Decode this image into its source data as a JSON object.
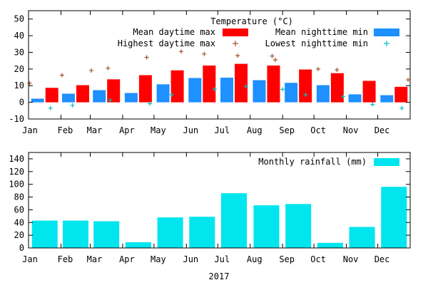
{
  "chart_data": [
    {
      "type": "bar",
      "title": "Temperature (°C)",
      "categories": [
        "Jan",
        "Feb",
        "Mar",
        "Apr",
        "May",
        "Jun",
        "Jul",
        "Aug",
        "Sep",
        "Oct",
        "Nov",
        "Dec"
      ],
      "ylim": [
        -10,
        55
      ],
      "yticks": [
        -10,
        0,
        10,
        20,
        30,
        40,
        50
      ],
      "grid": false,
      "legend_position": "top-right",
      "series": [
        {
          "name": "Mean nighttime min",
          "kind": "bar",
          "color": "#1e90ff",
          "values": [
            2.2,
            5.2,
            7.3,
            5.6,
            10.8,
            14.6,
            14.8,
            13.3,
            11.7,
            10.3,
            4.8,
            4.3
          ]
        },
        {
          "name": "Mean daytime max",
          "kind": "bar",
          "color": "#ff0000",
          "values": [
            8.7,
            10.3,
            13.8,
            16.3,
            19.2,
            22.1,
            23.1,
            22.1,
            19.7,
            17.5,
            12.9,
            9.3
          ]
        }
      ],
      "points": [
        {
          "name": "Highest daytime max",
          "marker": "+",
          "color": "#a0522d",
          "data": [
            [
              "2017-01-02",
              11.5
            ],
            [
              "2017-02-02",
              16.3
            ],
            [
              "2017-03-02",
              19.1
            ],
            [
              "2017-03-18",
              20.5
            ],
            [
              "2017-04-24",
              27.0
            ],
            [
              "2017-05-27",
              30.5
            ],
            [
              "2017-06-18",
              29.0
            ],
            [
              "2017-07-20",
              28.0
            ],
            [
              "2017-08-22",
              27.8
            ],
            [
              "2017-08-25",
              25.5
            ],
            [
              "2017-10-05",
              20.0
            ],
            [
              "2017-10-23",
              19.5
            ],
            [
              "2017-12-30",
              13.5
            ]
          ]
        },
        {
          "name": "Lowest nighttime min",
          "marker": "+",
          "color": "#00c0c0",
          "data": [
            [
              "2017-01-22",
              -3.5
            ],
            [
              "2017-02-12",
              -1.8
            ],
            [
              "2017-03-20",
              1.3
            ],
            [
              "2017-04-27",
              -0.8
            ],
            [
              "2017-05-18",
              4.6
            ],
            [
              "2017-06-28",
              7.9
            ],
            [
              "2017-07-28",
              9.5
            ],
            [
              "2017-09-01",
              7.8
            ],
            [
              "2017-09-23",
              4.6
            ],
            [
              "2017-10-29",
              3.5
            ],
            [
              "2017-11-26",
              -1.3
            ],
            [
              "2017-12-24",
              -3.5
            ]
          ]
        }
      ]
    },
    {
      "type": "bar",
      "title": "",
      "categories": [
        "Jan",
        "Feb",
        "Mar",
        "Apr",
        "May",
        "Jun",
        "Jul",
        "Aug",
        "Sep",
        "Oct",
        "Nov",
        "Dec"
      ],
      "xlabel": "2017",
      "ylim": [
        0,
        150
      ],
      "yticks": [
        0,
        20,
        40,
        60,
        80,
        100,
        120,
        140
      ],
      "grid": false,
      "legend_position": "top-right",
      "series": [
        {
          "name": "Monthly rainfall (mm)",
          "kind": "bar",
          "color": "#00e5ee",
          "values": [
            43,
            43,
            42,
            9,
            48,
            49,
            86,
            67,
            69,
            8,
            33,
            96
          ]
        }
      ]
    }
  ]
}
